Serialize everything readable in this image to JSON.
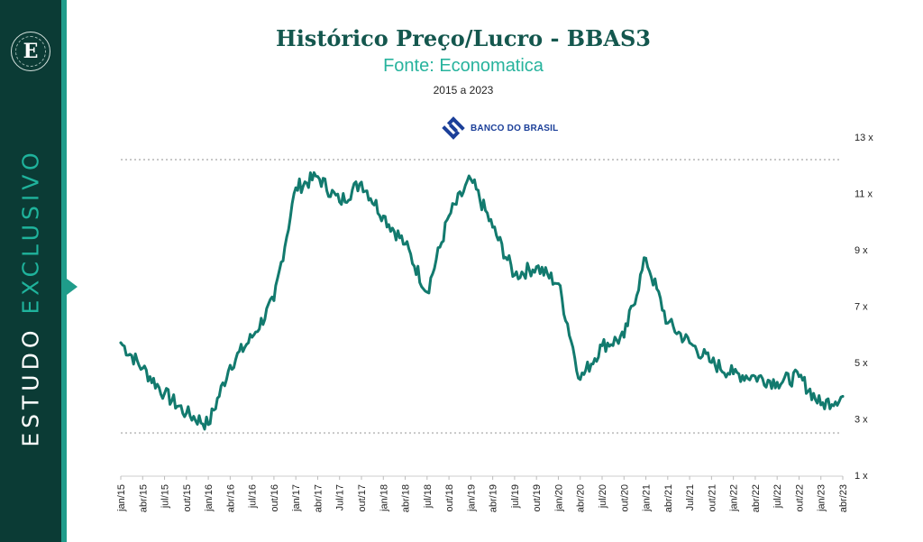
{
  "branding": {
    "logo_letter": "E",
    "sidebar_word_1": "ESTUDO",
    "sidebar_word_2": "EXCLUSIVO",
    "colors": {
      "sidebar": "#0b3b35",
      "accent": "#1f9c8a",
      "line": "#127a6e"
    }
  },
  "header": {
    "title": "Histórico Preço/Lucro - BBAS3",
    "subtitle": "Fonte: Economatica",
    "period": "2015 a 2023",
    "bank_logo_text": "BANCO DO BRASIL"
  },
  "chart_data": {
    "type": "line",
    "title": "Histórico Preço/Lucro - BBAS3",
    "xlabel": "",
    "ylabel": "",
    "ylim": [
      1,
      13
    ],
    "yticks": [
      1,
      3,
      5,
      7,
      9,
      11,
      13
    ],
    "ytick_labels": [
      "1 x",
      "3 x",
      "5 x",
      "7 x",
      "9 x",
      "11 x",
      "13 x"
    ],
    "y_axis_side": "right",
    "reference_lines": [
      12.2,
      2.5
    ],
    "categories": [
      "jan/15",
      "abr/15",
      "jul/15",
      "out/15",
      "jan/16",
      "abr/16",
      "jul/16",
      "out/16",
      "jan/17",
      "abr/17",
      "Jul/17",
      "out/17",
      "jan/18",
      "abr/18",
      "jul/18",
      "out/18",
      "jan/19",
      "abr/19",
      "jul/19",
      "out/19",
      "jan/20",
      "abr/20",
      "jul/20",
      "out/20",
      "jan/21",
      "abr/21",
      "Jul/21",
      "out/21",
      "jan/22",
      "abr/22",
      "jul/22",
      "out/22",
      "jan/23",
      "abr/23"
    ],
    "series": [
      {
        "color": "#127a6e",
        "values": [
          5.7,
          4.8,
          3.9,
          3.2,
          2.8,
          4.9,
          5.9,
          7.2,
          11.2,
          11.6,
          10.7,
          11.4,
          10.2,
          9.2,
          7.5,
          10.2,
          11.5,
          9.8,
          8.1,
          8.4,
          7.8,
          4.4,
          5.6,
          5.9,
          8.7,
          6.4,
          5.7,
          5.0,
          4.6,
          4.5,
          4.3,
          4.5,
          3.5,
          3.8
        ]
      }
    ]
  }
}
